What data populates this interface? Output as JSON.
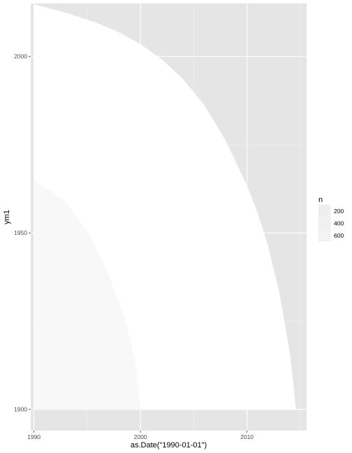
{
  "chart_data": {
    "type": "area",
    "title": "",
    "xlabel": "as.Date(\"1990-01-01\")",
    "ylabel": "ym1",
    "xlim": [
      1989.7,
      2015.6
    ],
    "ylim": [
      1894,
      2015
    ],
    "x_ticks": [
      {
        "value": 1990,
        "label": "1990"
      },
      {
        "value": 2000,
        "label": "2000"
      },
      {
        "value": 2010,
        "label": "2010"
      }
    ],
    "y_ticks": [
      {
        "value": 1900,
        "label": "1900"
      },
      {
        "value": 1950,
        "label": "1950"
      },
      {
        "value": 2000,
        "label": "2000"
      }
    ],
    "grid": true,
    "background": "#e5e5e5",
    "fill_color": "#ffffff",
    "outer_arc": [
      [
        1990.0,
        2014.8
      ],
      [
        1993.0,
        2012.4
      ],
      [
        1996.0,
        2009.4
      ],
      [
        1998.0,
        2006.8
      ],
      [
        2000.0,
        2003.5
      ],
      [
        2002.0,
        1999.2
      ],
      [
        2004.0,
        1993.6
      ],
      [
        2006.0,
        1986.2
      ],
      [
        2008.0,
        1976.2
      ],
      [
        2010.0,
        1963.5
      ],
      [
        2011.0,
        1955.8
      ],
      [
        2012.0,
        1946.1
      ],
      [
        2013.0,
        1933.8
      ],
      [
        2014.0,
        1916.6
      ],
      [
        2014.4,
        1906.3
      ],
      [
        2014.6,
        1900.0
      ]
    ],
    "inner_arc": [
      [
        1990.0,
        1965.0
      ],
      [
        1993.0,
        1958.8
      ],
      [
        1995.0,
        1950.6
      ],
      [
        1997.0,
        1938.3
      ],
      [
        1998.5,
        1926.0
      ],
      [
        1999.5,
        1914.1
      ],
      [
        2000.0,
        1900.0
      ]
    ],
    "legend": {
      "title": "n",
      "position": "right",
      "entries": [
        {
          "label": "200",
          "alpha": 0.1
        },
        {
          "label": "400",
          "alpha": 0.25
        },
        {
          "label": "600",
          "alpha": 0.4
        }
      ]
    }
  }
}
